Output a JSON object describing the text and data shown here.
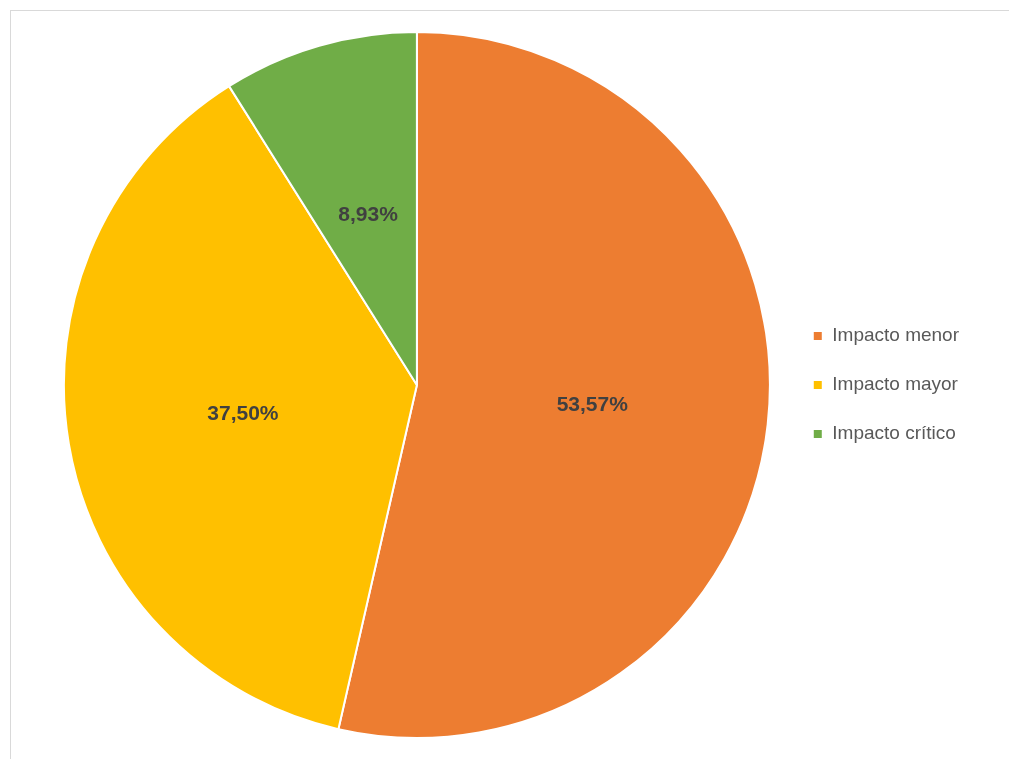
{
  "chart_data": {
    "type": "pie",
    "categories": [
      "Impacto menor",
      "Impacto mayor",
      "Impacto crítico"
    ],
    "values": [
      53.57,
      37.5,
      8.93
    ],
    "colors": [
      "#ed7d31",
      "#ffc000",
      "#70ad47"
    ],
    "value_labels": [
      "53,57%",
      "37,50%",
      "8,93%"
    ],
    "legend": "right"
  }
}
